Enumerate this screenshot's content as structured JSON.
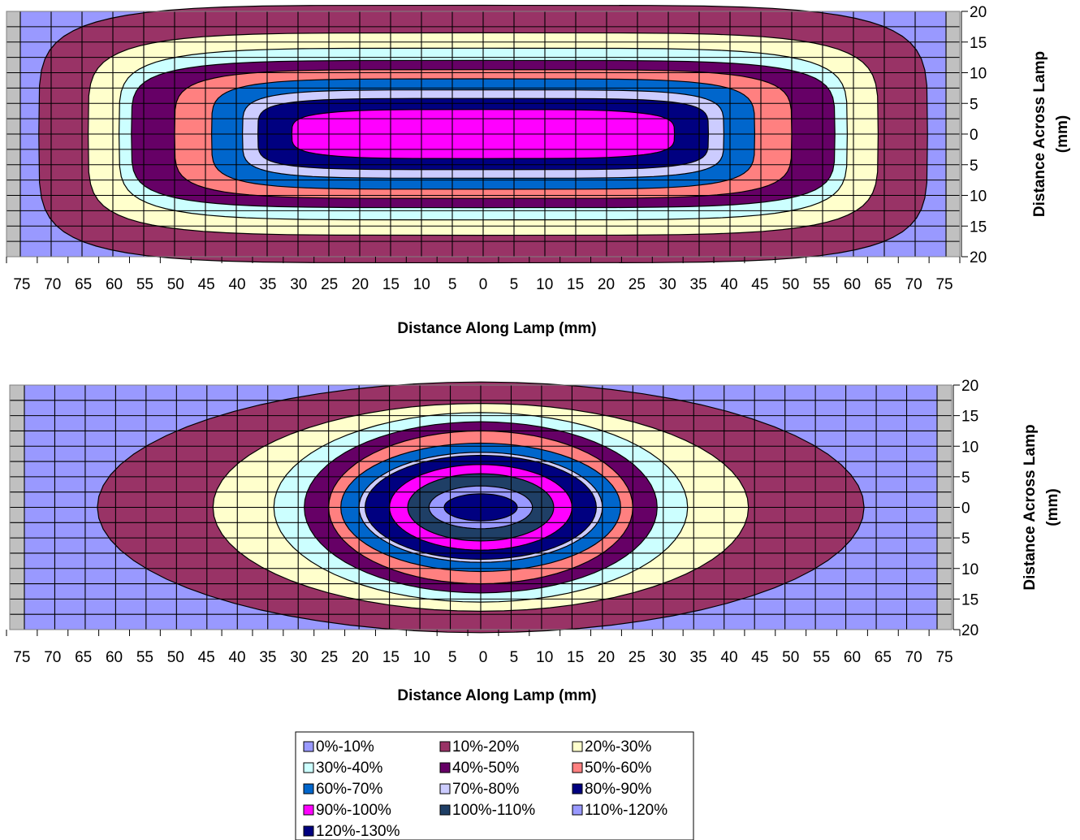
{
  "chart_data": [
    {
      "type": "contour",
      "xlabel": "Distance Along Lamp (mm)",
      "ylabel": "Distance Across Lamp (mm)",
      "x_ticks": [
        "75",
        "70",
        "65",
        "60",
        "55",
        "50",
        "45",
        "40",
        "35",
        "30",
        "25",
        "20",
        "15",
        "10",
        "5",
        "0",
        "5",
        "10",
        "15",
        "20",
        "25",
        "30",
        "35",
        "40",
        "45",
        "50",
        "55",
        "60",
        "65",
        "70",
        "75"
      ],
      "y_ticks": [
        "20",
        "15",
        "10",
        "5",
        "0",
        "5",
        "10",
        "15",
        "20"
      ],
      "xlim": [
        -75,
        75
      ],
      "ylim": [
        -20,
        20
      ],
      "grid": true,
      "contours": [
        {
          "level": "10%-20%",
          "a": 72,
          "b": 21,
          "p": 5
        },
        {
          "level": "20%-30%",
          "a": 64,
          "b": 16.5,
          "p": 5
        },
        {
          "level": "30%-40%",
          "a": 59,
          "b": 14,
          "p": 5
        },
        {
          "level": "40%-50%",
          "a": 57,
          "b": 12,
          "p": 5
        },
        {
          "level": "50%-60%",
          "a": 50,
          "b": 10.5,
          "p": 5
        },
        {
          "level": "60%-70%",
          "a": 44,
          "b": 9,
          "p": 5
        },
        {
          "level": "70%-80%",
          "a": 39,
          "b": 7.2,
          "p": 5
        },
        {
          "level": "80%-90%",
          "a": 36.5,
          "b": 5.8,
          "p": 5
        },
        {
          "level": "90%-100%",
          "a": 31,
          "b": 4,
          "p": 4
        }
      ]
    },
    {
      "type": "contour",
      "xlabel": "Distance Along Lamp (mm)",
      "ylabel": "Distance Across Lamp (mm)",
      "x_ticks": [
        "75",
        "70",
        "65",
        "60",
        "55",
        "50",
        "45",
        "40",
        "35",
        "30",
        "25",
        "20",
        "15",
        "10",
        "5",
        "0",
        "5",
        "10",
        "15",
        "20",
        "25",
        "30",
        "35",
        "40",
        "45",
        "50",
        "55",
        "60",
        "65",
        "70",
        "75"
      ],
      "y_ticks": [
        "20",
        "15",
        "10",
        "5",
        "0",
        "5",
        "10",
        "15",
        "20"
      ],
      "xlim": [
        -75,
        75
      ],
      "ylim": [
        -20,
        20
      ],
      "grid": true,
      "contours": [
        {
          "level": "10%-20%",
          "a": 63,
          "b": 20.5,
          "p": 2
        },
        {
          "level": "20%-30%",
          "a": 44,
          "b": 17,
          "p": 2
        },
        {
          "level": "30%-40%",
          "a": 34,
          "b": 15.5,
          "p": 2
        },
        {
          "level": "40%-50%",
          "a": 29,
          "b": 14,
          "p": 2
        },
        {
          "level": "50%-60%",
          "a": 25,
          "b": 12.5,
          "p": 2
        },
        {
          "level": "60%-70%",
          "a": 23,
          "b": 10.5,
          "p": 2
        },
        {
          "level": "70%-80%",
          "a": 20,
          "b": 9,
          "p": 2
        },
        {
          "level": "80%-90%",
          "a": 19,
          "b": 8.5,
          "p": 2
        },
        {
          "level": "90%-100%",
          "a": 15,
          "b": 7,
          "p": 2
        },
        {
          "level": "100%-110%",
          "a": 12,
          "b": 5.5,
          "p": 2
        },
        {
          "level": "110%-120%",
          "a": 8.5,
          "b": 3.5,
          "p": 2
        },
        {
          "level": "120%-130%",
          "a": 6,
          "b": 2.2,
          "p": 2
        }
      ]
    }
  ],
  "legend": [
    {
      "label": "0%-10%",
      "color": "#9999ff"
    },
    {
      "label": "10%-20%",
      "color": "#993366"
    },
    {
      "label": "20%-30%",
      "color": "#ffffcc"
    },
    {
      "label": "30%-40%",
      "color": "#ccffff"
    },
    {
      "label": "40%-50%",
      "color": "#660066"
    },
    {
      "label": "50%-60%",
      "color": "#ff8080"
    },
    {
      "label": "60%-70%",
      "color": "#0066cc"
    },
    {
      "label": "70%-80%",
      "color": "#ccccff"
    },
    {
      "label": "80%-90%",
      "color": "#000080"
    },
    {
      "label": "90%-100%",
      "color": "#ff00ff"
    },
    {
      "label": "100%-110%",
      "color": "#1f3f66"
    },
    {
      "label": "110%-120%",
      "color": "#9999ff"
    },
    {
      "label": "120%-130%",
      "color": "#000080"
    }
  ],
  "colors": {
    "grid": "#000000",
    "side_bar": "#c0c0c0",
    "outline": "#000000"
  }
}
